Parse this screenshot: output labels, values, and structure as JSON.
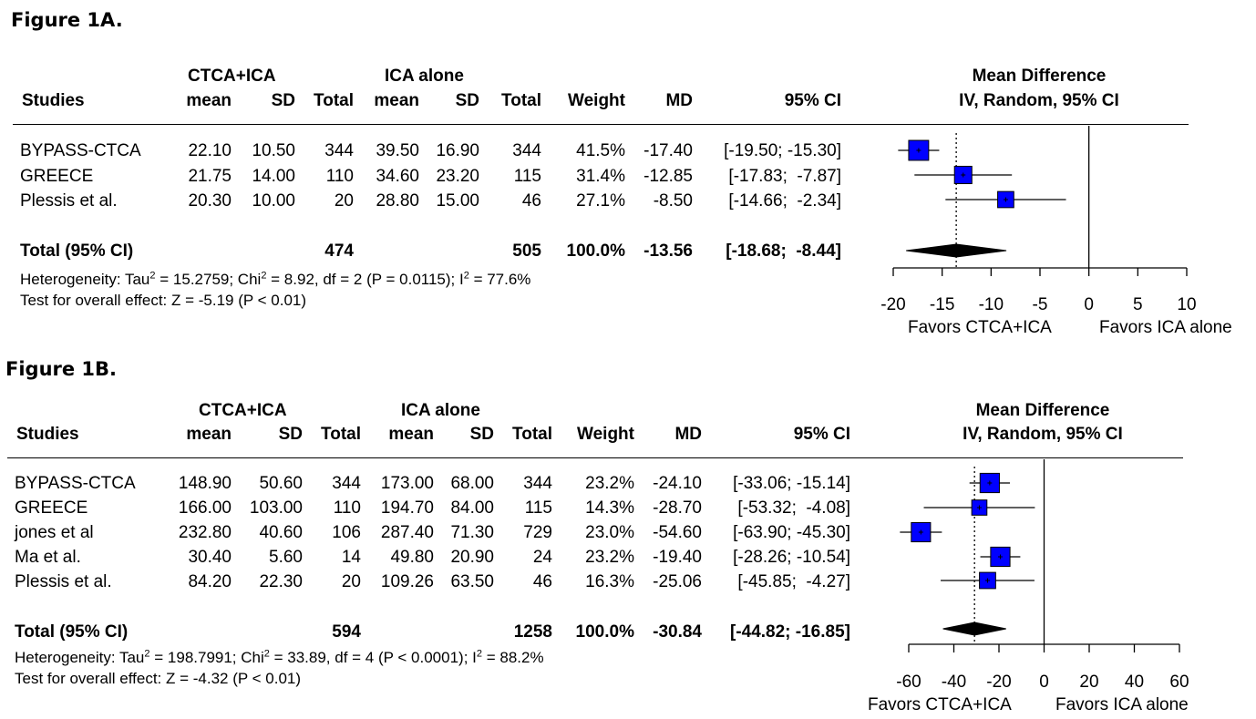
{
  "colors": {
    "box": "#0000ff",
    "diamond": "#000000"
  },
  "chart_data": [
    {
      "type": "forest",
      "figure_label": "Figure 1A.",
      "headers": {
        "studies": "Studies",
        "group1": "CTCA+ICA",
        "group2": "ICA alone",
        "mean": "mean",
        "sd": "SD",
        "total": "Total",
        "weight": "Weight",
        "md": "MD",
        "ci": "95% CI",
        "plot_title1": "Mean Difference",
        "plot_title2": "IV, Random, 95% CI"
      },
      "studies": [
        {
          "name": "BYPASS-CTCA",
          "mean1": "22.10",
          "sd1": "10.50",
          "total1": "344",
          "mean2": "39.50",
          "sd2": "16.90",
          "total2": "344",
          "weight": "41.5%",
          "md_text": "-17.40",
          "ci_text": "[-19.50; -15.30]",
          "md": -17.4,
          "lo": -19.5,
          "hi": -15.3,
          "w": 41.5
        },
        {
          "name": "GREECE",
          "mean1": "21.75",
          "sd1": "14.00",
          "total1": "110",
          "mean2": "34.60",
          "sd2": "23.20",
          "total2": "115",
          "weight": "31.4%",
          "md_text": "-12.85",
          "ci_text": "[-17.83;  -7.87]",
          "md": -12.85,
          "lo": -17.83,
          "hi": -7.87,
          "w": 31.4
        },
        {
          "name": "Plessis et al.",
          "mean1": "20.30",
          "sd1": "10.00",
          "total1": "20",
          "mean2": "28.80",
          "sd2": "15.00",
          "total2": "46",
          "weight": "27.1%",
          "md_text": "-8.50",
          "ci_text": "[-14.66;  -2.34]",
          "md": -8.5,
          "lo": -14.66,
          "hi": -2.34,
          "w": 27.1
        }
      ],
      "total": {
        "label": "Total (95% CI)",
        "total1": "474",
        "total2": "505",
        "weight": "100.0%",
        "md_text": "-13.56",
        "ci_text": "[-18.68;  -8.44]",
        "md": -13.56,
        "lo": -18.68,
        "hi": -8.44
      },
      "heterogeneity": {
        "prefix": "Heterogeneity: Tau",
        "tau2": " = 15.2759; Chi",
        "chi2": " = 8.92, df = 2 (P = 0.0115); I",
        "i2": " = 77.6%"
      },
      "overall_effect": "Test for overall effect: Z = -5.19 (P < 0.01)",
      "x_ticks": [
        -20,
        -15,
        -10,
        -5,
        0,
        5,
        10
      ],
      "x_tick_labels": [
        "-20",
        "-15",
        "-10",
        "-5",
        "0",
        "5",
        "10"
      ],
      "xlim": [
        -20,
        10
      ],
      "favors_left": "Favors CTCA+ICA",
      "favors_right": "Favors ICA alone"
    },
    {
      "type": "forest",
      "figure_label": "Figure 1B.",
      "headers": {
        "studies": "Studies",
        "group1": "CTCA+ICA",
        "group2": "ICA alone",
        "mean": "mean",
        "sd": "SD",
        "total": "Total",
        "weight": "Weight",
        "md": "MD",
        "ci": "95% CI",
        "plot_title1": "Mean Difference",
        "plot_title2": "IV, Random, 95% CI"
      },
      "studies": [
        {
          "name": "BYPASS-CTCA",
          "mean1": "148.90",
          "sd1": "50.60",
          "total1": "344",
          "mean2": "173.00",
          "sd2": "68.00",
          "total2": "344",
          "weight": "23.2%",
          "md_text": "-24.10",
          "ci_text": "[-33.06; -15.14]",
          "md": -24.1,
          "lo": -33.06,
          "hi": -15.14,
          "w": 23.2
        },
        {
          "name": "GREECE",
          "mean1": "166.00",
          "sd1": "103.00",
          "total1": "110",
          "mean2": "194.70",
          "sd2": "84.00",
          "total2": "115",
          "weight": "14.3%",
          "md_text": "-28.70",
          "ci_text": "[-53.32;  -4.08]",
          "md": -28.7,
          "lo": -53.32,
          "hi": -4.08,
          "w": 14.3
        },
        {
          "name": "jones et al",
          "mean1": "232.80",
          "sd1": "40.60",
          "total1": "106",
          "mean2": "287.40",
          "sd2": "71.30",
          "total2": "729",
          "weight": "23.0%",
          "md_text": "-54.60",
          "ci_text": "[-63.90; -45.30]",
          "md": -54.6,
          "lo": -63.9,
          "hi": -45.3,
          "w": 23.0
        },
        {
          "name": "Ma et al.",
          "mean1": "30.40",
          "sd1": "5.60",
          "total1": "14",
          "mean2": "49.80",
          "sd2": "20.90",
          "total2": "24",
          "weight": "23.2%",
          "md_text": "-19.40",
          "ci_text": "[-28.26; -10.54]",
          "md": -19.4,
          "lo": -28.26,
          "hi": -10.54,
          "w": 23.2
        },
        {
          "name": "Plessis et al.",
          "mean1": "84.20",
          "sd1": "22.30",
          "total1": "20",
          "mean2": "109.26",
          "sd2": "63.50",
          "total2": "46",
          "weight": "16.3%",
          "md_text": "-25.06",
          "ci_text": "[-45.85;  -4.27]",
          "md": -25.06,
          "lo": -45.85,
          "hi": -4.27,
          "w": 16.3
        }
      ],
      "total": {
        "label": "Total (95% CI)",
        "total1": "594",
        "total2": "1258",
        "weight": "100.0%",
        "md_text": "-30.84",
        "ci_text": "[-44.82; -16.85]",
        "md": -30.84,
        "lo": -44.82,
        "hi": -16.85
      },
      "heterogeneity": {
        "prefix": "Heterogeneity: Tau",
        "tau2": " = 198.7991; Chi",
        "chi2": " = 33.89, df = 4 (P < 0.0001); I",
        "i2": " = 88.2%"
      },
      "overall_effect": "Test for overall effect: Z = -4.32 (P < 0.01)",
      "x_ticks": [
        -60,
        -40,
        -20,
        0,
        20,
        40,
        60
      ],
      "x_tick_labels": [
        "-60",
        "-40",
        "-20",
        "0",
        "20",
        "40",
        "60"
      ],
      "xlim": [
        -60,
        60
      ],
      "favors_left": "Favors CTCA+ICA",
      "favors_right": "Favors ICA alone"
    }
  ]
}
